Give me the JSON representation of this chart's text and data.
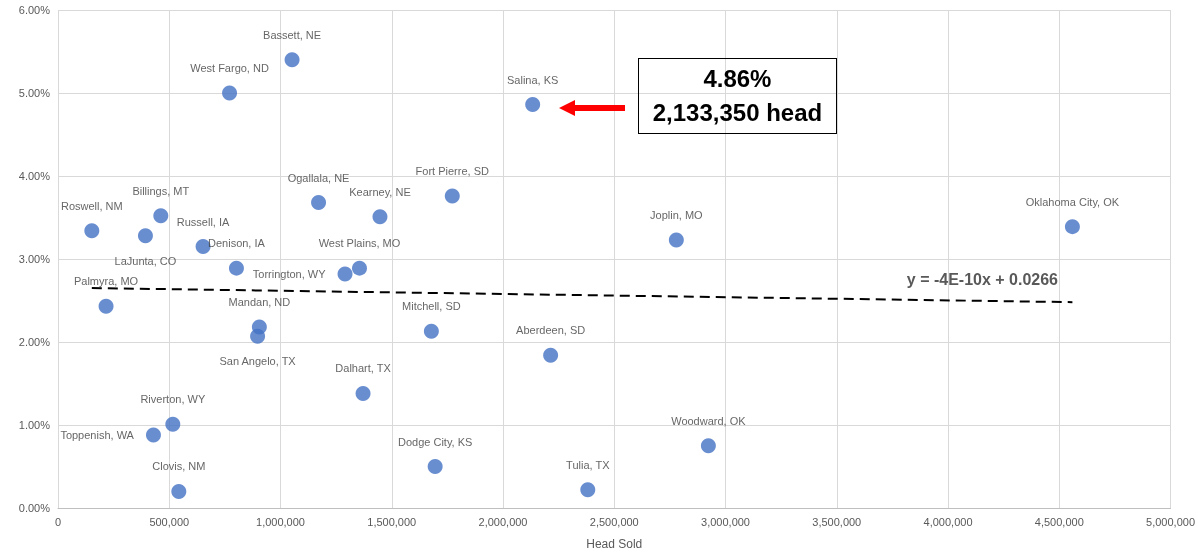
{
  "chart_data": {
    "type": "scatter",
    "xlabel": "Head Sold",
    "xlim": [
      0,
      5000000
    ],
    "xticks": [
      0,
      {
        "value": 500000,
        "label": "500,000"
      },
      {
        "value": 1000000,
        "label": "1,000,000"
      },
      {
        "value": 1500000,
        "label": "1,500,000"
      },
      {
        "value": 2000000,
        "label": "2,000,000"
      },
      {
        "value": 2500000,
        "label": "2,500,000"
      },
      {
        "value": 3000000,
        "label": "3,000,000"
      },
      {
        "value": 3500000,
        "label": "3,500,000"
      },
      {
        "value": 4000000,
        "label": "4,000,000"
      },
      {
        "value": 4500000,
        "label": "4,500,000"
      },
      {
        "value": 5000000,
        "label": "5,000,000"
      }
    ],
    "ylim": [
      0,
      6
    ],
    "yticks": [
      {
        "value": 0,
        "label": "0.00%"
      },
      {
        "value": 1,
        "label": "1.00%"
      },
      {
        "value": 2,
        "label": "2.00%"
      },
      {
        "value": 3,
        "label": "3.00%"
      },
      {
        "value": 4,
        "label": "4.00%"
      },
      {
        "value": 5,
        "label": "5.00%"
      },
      {
        "value": 6,
        "label": "6.00%"
      }
    ],
    "grid": true,
    "marker": "circle",
    "series": [
      {
        "color": "#4472c4",
        "x": [
          1052000,
          771000,
          2133350,
          1772000,
          1171000,
          1447000,
          462000,
          152000,
          393000,
          652000,
          802000,
          1355000,
          1290000,
          216000,
          905000,
          897000,
          1678000,
          2214000,
          1371000,
          516000,
          429000,
          543000,
          1695000,
          2381000,
          2779000,
          4559000,
          2923000
        ],
        "values": [
          5.4,
          5.0,
          4.86,
          3.76,
          3.68,
          3.51,
          3.52,
          3.34,
          3.28,
          3.15,
          2.89,
          2.89,
          2.82,
          2.43,
          2.18,
          2.07,
          2.13,
          1.84,
          1.38,
          1.01,
          0.88,
          0.2,
          0.5,
          0.22,
          3.23,
          3.39,
          0.75
        ],
        "value_labels": [
          "Bassett, NE",
          "West Fargo, ND",
          "Salina, KS",
          "Fort Pierre, SD",
          "Ogallala, NE",
          "Kearney, NE",
          "Billings, MT",
          "Roswell, NM",
          "LaJunta, CO",
          "Russell, IA",
          "Denison, IA",
          "West Plains, MO",
          "Torrington, WY",
          "Palmyra, MO",
          "Mandan, ND",
          "San Angelo, TX",
          "Mitchell, SD",
          "Aberdeen, SD",
          "Dalhart, TX",
          "Riverton, WY",
          "Toppenish, WA",
          "Clovis, NM",
          "Dodge City, KS",
          "Tulia, TX",
          "Joplin, MO",
          "Oklahoma City, OK",
          "Woodward, OK"
        ]
      },
      {
        "type": "line",
        "color": "#000000",
        "line_style": "dashed",
        "marker": "none",
        "x": [
          152000,
          4559000
        ],
        "values": [
          2.65,
          2.48
        ]
      }
    ],
    "annotations": [
      "4.86%\n2,133,350 head",
      "y = -4E-10x + 0.0266"
    ]
  }
}
